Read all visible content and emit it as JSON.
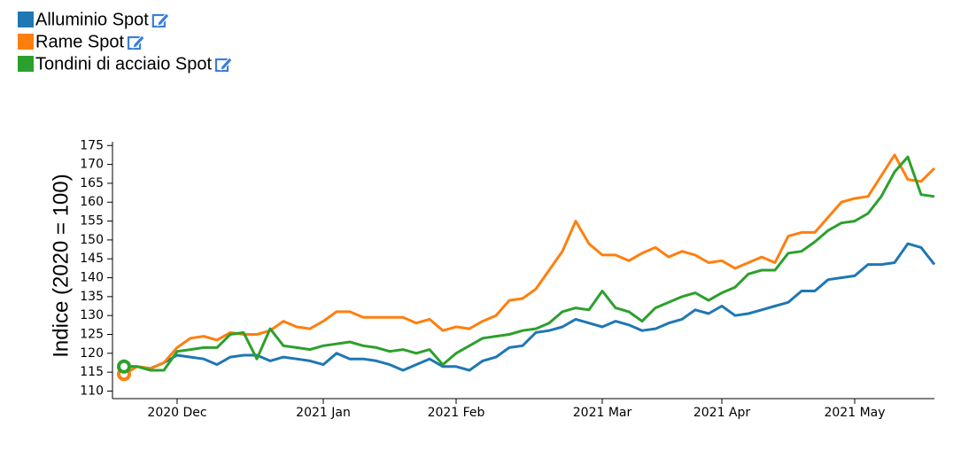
{
  "chart_data": {
    "type": "line",
    "y_label": "Indice (2020 = 100)",
    "categories": [
      null,
      null,
      null,
      null,
      "2020 Dec",
      null,
      null,
      null,
      null,
      null,
      null,
      null,
      null,
      null,
      null,
      "2021 Jan",
      null,
      null,
      null,
      null,
      null,
      null,
      null,
      null,
      null,
      "2021 Feb",
      null,
      null,
      null,
      null,
      null,
      null,
      null,
      null,
      null,
      null,
      "2021 Mar",
      null,
      null,
      null,
      null,
      null,
      null,
      null,
      null,
      "2021 Apr",
      null,
      null,
      null,
      null,
      null,
      null,
      null,
      null,
      null,
      "2021 May",
      null,
      null,
      null,
      null,
      null,
      null
    ],
    "series": [
      {
        "name": "Alluminio Spot",
        "color": "#1f77b4",
        "values": [
          116.5,
          116.5,
          116,
          117.5,
          119.5,
          119,
          118.5,
          117,
          119,
          119.5,
          119.5,
          118,
          119,
          118.5,
          118,
          117,
          120,
          118.5,
          118.5,
          118,
          117,
          115.5,
          117,
          118.5,
          116.5,
          116.5,
          115.5,
          118,
          119,
          121.5,
          122,
          125.5,
          126,
          127,
          129,
          128,
          127,
          128.5,
          127.5,
          126,
          126.5,
          128,
          129,
          131.5,
          130.5,
          132.5,
          130,
          130.5,
          131.5,
          132.5,
          133.5,
          136.5,
          136.5,
          139.5,
          140,
          140.5,
          143.5,
          143.5,
          144,
          149,
          148,
          143.5
        ]
      },
      {
        "name": "Rame Spot",
        "color": "#ff7f0e",
        "values": [
          114.5,
          116.5,
          116,
          117.5,
          121.5,
          124,
          124.5,
          123.5,
          125.5,
          125,
          125,
          126,
          128.5,
          127,
          126.5,
          128.5,
          131,
          131,
          129.5,
          129.5,
          129.5,
          129.5,
          128,
          129,
          126,
          127,
          126.5,
          128.5,
          130,
          134,
          134.5,
          137,
          142,
          147,
          155,
          149,
          146,
          146,
          144.5,
          146.5,
          148,
          145.5,
          147,
          146,
          144,
          144.5,
          142.5,
          144,
          145.5,
          144,
          151,
          152,
          152,
          156,
          160,
          161,
          161.5,
          167,
          172.5,
          166,
          165.5,
          169
        ]
      },
      {
        "name": "Tondini di acciaio Spot",
        "color": "#2ca02c",
        "values": [
          116.5,
          116.5,
          115.5,
          115.5,
          120.5,
          121,
          121.5,
          121.5,
          125,
          125.5,
          118.5,
          126.5,
          122,
          121.5,
          121,
          122,
          122.5,
          123,
          122,
          121.5,
          120.5,
          121,
          120,
          121,
          117,
          120,
          122,
          124,
          124.5,
          125,
          126,
          126.5,
          128,
          131,
          132,
          131.5,
          136.5,
          132,
          131,
          128.5,
          132,
          133.5,
          135,
          136,
          134,
          136,
          137.5,
          141,
          142,
          142,
          146.5,
          147,
          149.5,
          152.5,
          154.5,
          155,
          157,
          161.5,
          168,
          172,
          162,
          161.5
        ]
      }
    ],
    "ylim": [
      108,
      176
    ],
    "yticks": [
      110,
      115,
      120,
      125,
      130,
      135,
      140,
      145,
      150,
      155,
      160,
      165,
      170,
      175
    ]
  }
}
